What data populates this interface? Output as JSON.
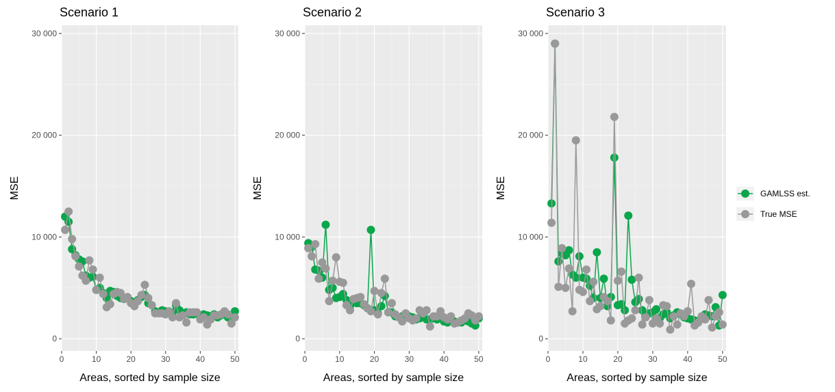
{
  "colors": {
    "gamlss": "#0aa64a",
    "true_mse": "#999999",
    "panel_bg": "#ebebeb",
    "grid_major": "#ffffff",
    "grid_minor": "#f5f5f5",
    "tick_text": "#4d4d4d"
  },
  "legend": {
    "position": "right",
    "entries": [
      {
        "key": "gamlss",
        "label": "GAMLSS est."
      },
      {
        "key": "true_mse",
        "label": "True MSE"
      }
    ]
  },
  "chart_data": [
    {
      "type": "line",
      "title": "Scenario 1",
      "xlabel": "Areas, sorted by sample size",
      "ylabel": "MSE",
      "xlim": [
        0,
        51
      ],
      "ylim": [
        -1200,
        30800
      ],
      "x_ticks": [
        0,
        10,
        20,
        30,
        40,
        50
      ],
      "x_tick_labels": [
        "0",
        "10",
        "20",
        "30",
        "40",
        "50"
      ],
      "y_ticks": [
        0,
        10000,
        20000,
        30000
      ],
      "y_tick_labels": [
        "0",
        "10 000",
        "20 000",
        "30 000"
      ],
      "grid": true,
      "x": [
        1,
        2,
        3,
        4,
        5,
        6,
        7,
        8,
        9,
        10,
        11,
        12,
        13,
        14,
        15,
        16,
        17,
        18,
        19,
        20,
        21,
        22,
        23,
        24,
        25,
        26,
        27,
        28,
        29,
        30,
        31,
        32,
        33,
        34,
        35,
        36,
        37,
        38,
        39,
        40,
        41,
        42,
        43,
        44,
        45,
        46,
        47,
        48,
        49,
        50
      ],
      "series": [
        {
          "name": "GAMLSS est.",
          "key": "gamlss",
          "values": [
            12000,
            11500,
            8800,
            8200,
            7800,
            7600,
            6200,
            6000,
            6100,
            4800,
            5000,
            4500,
            4000,
            4700,
            4600,
            4200,
            4000,
            3900,
            4000,
            3700,
            3500,
            3800,
            4100,
            4300,
            3500,
            3300,
            2700,
            2600,
            2800,
            2700,
            2500,
            2600,
            3300,
            2800,
            2500,
            2600,
            2400,
            2400,
            2500,
            2100,
            2400,
            2300,
            2200,
            2400,
            2100,
            2300,
            2500,
            2100,
            1800,
            2700
          ]
        },
        {
          "name": "True MSE",
          "key": "true_mse",
          "values": [
            10700,
            12500,
            9800,
            8100,
            7100,
            6200,
            5700,
            7700,
            6800,
            4800,
            6000,
            4400,
            3100,
            3400,
            4400,
            4600,
            4500,
            3900,
            4100,
            3500,
            3200,
            3700,
            4300,
            5300,
            4000,
            3300,
            2500,
            2500,
            2500,
            2400,
            2700,
            2100,
            3500,
            2100,
            2300,
            1600,
            2600,
            2600,
            2600,
            1900,
            2100,
            1400,
            1900,
            2300,
            2300,
            2400,
            2700,
            2400,
            1500,
            2100
          ]
        }
      ]
    },
    {
      "type": "line",
      "title": "Scenario 2",
      "xlabel": "Areas, sorted by sample size",
      "ylabel": "MSE",
      "xlim": [
        0,
        51
      ],
      "ylim": [
        -1200,
        30800
      ],
      "x_ticks": [
        0,
        10,
        20,
        30,
        40,
        50
      ],
      "x_tick_labels": [
        "0",
        "10",
        "20",
        "30",
        "40",
        "50"
      ],
      "y_ticks": [
        0,
        10000,
        20000,
        30000
      ],
      "y_tick_labels": [
        "0",
        "10 000",
        "20 000",
        "30 000"
      ],
      "grid": true,
      "x": [
        1,
        2,
        3,
        4,
        5,
        6,
        7,
        8,
        9,
        10,
        11,
        12,
        13,
        14,
        15,
        16,
        17,
        18,
        19,
        20,
        21,
        22,
        23,
        24,
        25,
        26,
        27,
        28,
        29,
        30,
        31,
        32,
        33,
        34,
        35,
        36,
        37,
        38,
        39,
        40,
        41,
        42,
        43,
        44,
        45,
        46,
        47,
        48,
        49,
        50
      ],
      "series": [
        {
          "name": "GAMLSS est.",
          "key": "gamlss",
          "values": [
            9400,
            9000,
            6800,
            6700,
            6000,
            11200,
            4800,
            5000,
            4000,
            4100,
            4400,
            3800,
            3200,
            3700,
            3500,
            3500,
            3300,
            3000,
            10700,
            2800,
            2500,
            3200,
            4200,
            2600,
            2600,
            2200,
            2100,
            2200,
            2100,
            2200,
            2100,
            1900,
            2000,
            2100,
            1900,
            1900,
            2000,
            1900,
            2000,
            1700,
            1600,
            1800,
            1700,
            1600,
            1600,
            1800,
            1700,
            1500,
            1300,
            2000
          ]
        },
        {
          "name": "True MSE",
          "key": "true_mse",
          "values": [
            8900,
            8100,
            9300,
            5900,
            7500,
            6900,
            3700,
            5700,
            8000,
            5600,
            5500,
            3300,
            2800,
            3900,
            4000,
            4100,
            3400,
            3000,
            2700,
            4700,
            2400,
            4500,
            5900,
            2600,
            3500,
            2400,
            2100,
            1700,
            2500,
            2000,
            1800,
            2000,
            2800,
            2500,
            2800,
            1200,
            2200,
            2200,
            2700,
            2100,
            1900,
            2200,
            1500,
            1600,
            1800,
            2000,
            2500,
            2300,
            1800,
            2200
          ]
        }
      ]
    },
    {
      "type": "line",
      "title": "Scenario 3",
      "xlabel": "Areas, sorted by sample size",
      "ylabel": "MSE",
      "xlim": [
        0,
        51
      ],
      "ylim": [
        -1200,
        30800
      ],
      "x_ticks": [
        0,
        10,
        20,
        30,
        40,
        50
      ],
      "x_tick_labels": [
        "0",
        "10",
        "20",
        "30",
        "40",
        "50"
      ],
      "y_ticks": [
        0,
        10000,
        20000,
        30000
      ],
      "y_tick_labels": [
        "0",
        "10 000",
        "20 000",
        "30 000"
      ],
      "grid": true,
      "x": [
        1,
        2,
        3,
        4,
        5,
        6,
        7,
        8,
        9,
        10,
        11,
        12,
        13,
        14,
        15,
        16,
        17,
        18,
        19,
        20,
        21,
        22,
        23,
        24,
        25,
        26,
        27,
        28,
        29,
        30,
        31,
        32,
        33,
        34,
        35,
        36,
        37,
        38,
        39,
        40,
        41,
        42,
        43,
        44,
        45,
        46,
        47,
        48,
        49,
        50
      ],
      "series": [
        {
          "name": "GAMLSS est.",
          "key": "gamlss",
          "values": [
            13300,
            29000,
            7600,
            8400,
            8200,
            8700,
            6300,
            6000,
            8100,
            6000,
            5900,
            5200,
            4000,
            8500,
            4000,
            5900,
            3200,
            4100,
            17800,
            3300,
            3400,
            2800,
            12100,
            5800,
            3600,
            3900,
            2800,
            2300,
            2500,
            2600,
            2900,
            2000,
            2400,
            2600,
            2000,
            2300,
            2600,
            2400,
            2100,
            2000,
            1900,
            1800,
            1600,
            2000,
            2400,
            2300,
            2200,
            3100,
            1300,
            4300
          ]
        },
        {
          "name": "True MSE",
          "key": "true_mse",
          "values": [
            11400,
            29000,
            5100,
            8900,
            5000,
            6900,
            2700,
            19500,
            4800,
            4600,
            6800,
            3700,
            5600,
            2900,
            3200,
            4100,
            3700,
            1800,
            21800,
            5700,
            6600,
            1500,
            1800,
            2000,
            2800,
            6000,
            1400,
            2100,
            3800,
            1500,
            2000,
            1500,
            3300,
            3200,
            900,
            2200,
            1400,
            2500,
            2200,
            2700,
            5400,
            1300,
            1600,
            2200,
            1900,
            3800,
            1100,
            2200,
            2600,
            1400
          ]
        }
      ]
    }
  ]
}
